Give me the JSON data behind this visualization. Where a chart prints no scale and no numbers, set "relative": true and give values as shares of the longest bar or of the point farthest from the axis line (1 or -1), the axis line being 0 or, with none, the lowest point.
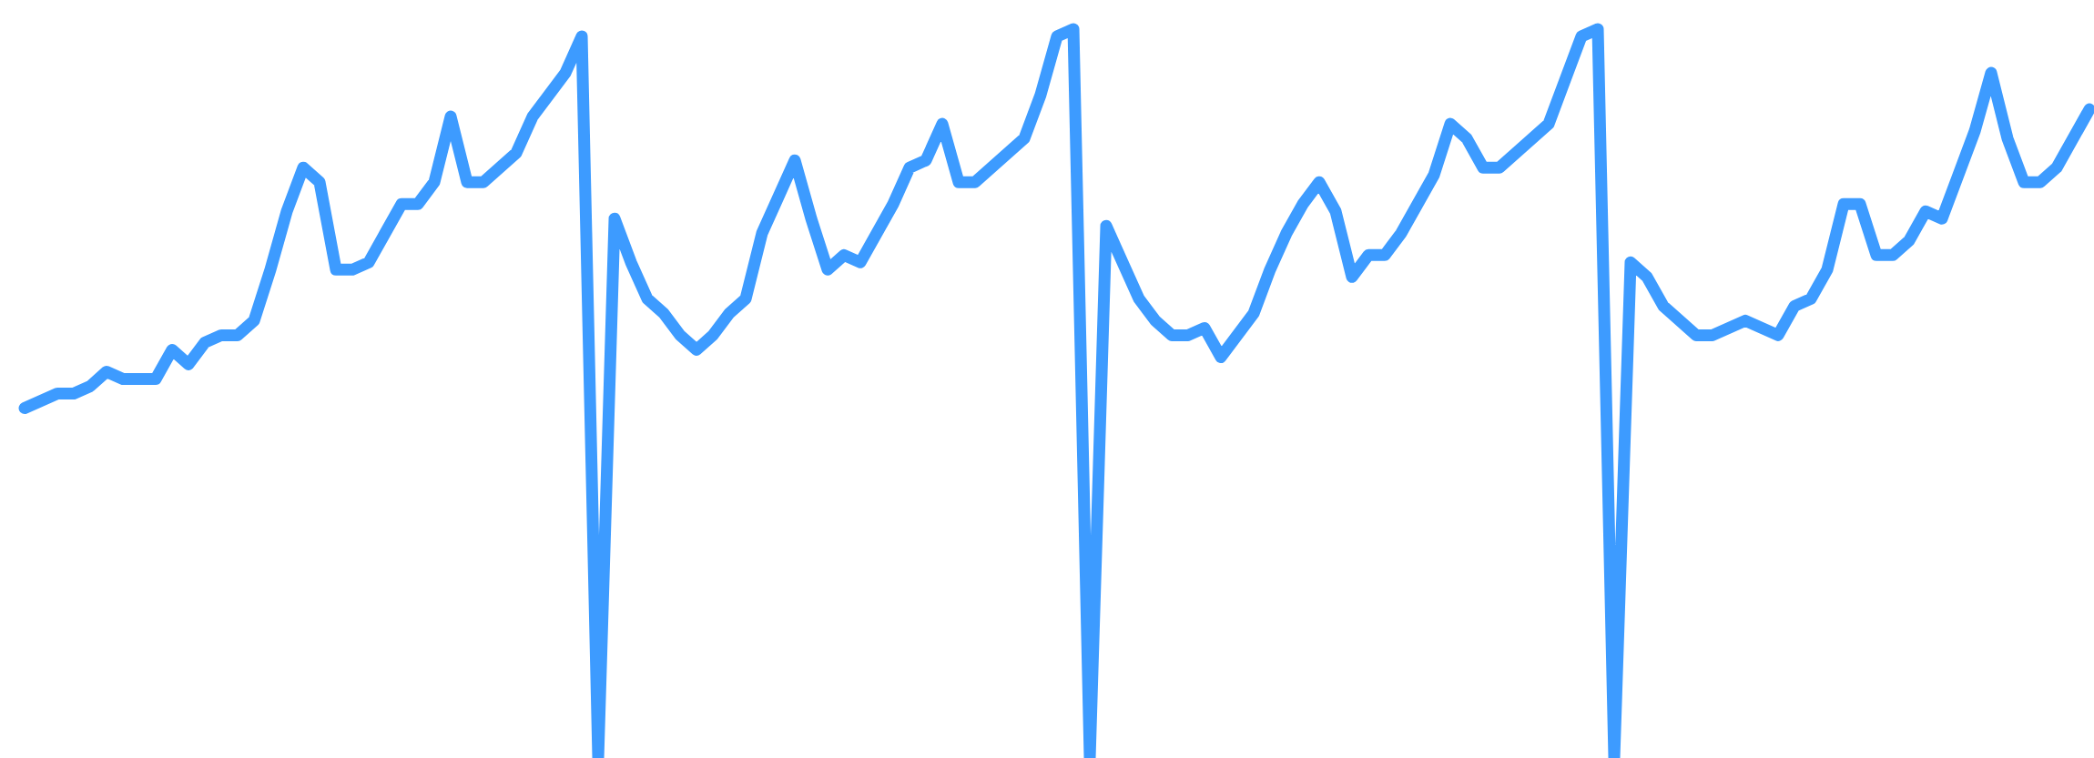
{
  "chart_data": {
    "type": "line",
    "relative": true,
    "marker": "none",
    "line_style": "solid",
    "categories": [
      null,
      null,
      null,
      null,
      null,
      null,
      null,
      null,
      null,
      null,
      null,
      null,
      null,
      null,
      null,
      null,
      null,
      null,
      null,
      null,
      null,
      null,
      null,
      null,
      null,
      null,
      null,
      null,
      null,
      null,
      null,
      null,
      null,
      null,
      null,
      null,
      null,
      null,
      null,
      null,
      null,
      null,
      null,
      null,
      null,
      null,
      null,
      null,
      null,
      null,
      null,
      null,
      null,
      null,
      null,
      null,
      null,
      null,
      null,
      null,
      null,
      null,
      null,
      null,
      null,
      null,
      null,
      null,
      null,
      null,
      null,
      null,
      null,
      null,
      null,
      null,
      null,
      null,
      null,
      null,
      null,
      null,
      null,
      null,
      null,
      null,
      null,
      null,
      null,
      null,
      null,
      null,
      null,
      null,
      null,
      null,
      null,
      null,
      null,
      null,
      null,
      null,
      null,
      null,
      null,
      null,
      null,
      null,
      null,
      null,
      null,
      null,
      null,
      null,
      null,
      null,
      null,
      null,
      null,
      null,
      null,
      null,
      null,
      null,
      null,
      null,
      null
    ],
    "series": [
      {
        "color": "#3d9bff",
        "values": [
          0.48,
          0.49,
          0.5,
          0.5,
          0.51,
          0.53,
          0.52,
          0.52,
          0.52,
          0.56,
          0.54,
          0.57,
          0.58,
          0.58,
          0.6,
          0.67,
          0.75,
          0.81,
          0.79,
          0.67,
          0.67,
          0.68,
          0.72,
          0.76,
          0.76,
          0.79,
          0.88,
          0.79,
          0.79,
          0.81,
          0.83,
          0.88,
          0.91,
          0.94,
          0.99,
          0,
          0.74,
          0.68,
          0.63,
          0.61,
          0.58,
          0.56,
          0.58,
          0.61,
          0.63,
          0.72,
          0.77,
          0.82,
          0.74,
          0.67,
          0.69,
          0.68,
          0.72,
          0.76,
          0.81,
          0.82,
          0.87,
          0.79,
          0.79,
          0.81,
          0.83,
          0.85,
          0.91,
          0.99,
          1,
          0,
          0.73,
          0.68,
          0.63,
          0.6,
          0.58,
          0.58,
          0.59,
          0.55,
          0.58,
          0.61,
          0.67,
          0.72,
          0.76,
          0.79,
          0.75,
          0.66,
          0.69,
          0.69,
          0.72,
          0.76,
          0.8,
          0.87,
          0.85,
          0.81,
          0.81,
          0.83,
          0.85,
          0.87,
          0.93,
          0.99,
          1,
          0,
          0.68,
          0.66,
          0.62,
          0.6,
          0.58,
          0.58,
          0.59,
          0.6,
          0.59,
          0.58,
          0.62,
          0.63,
          0.67,
          0.76,
          0.76,
          0.69,
          0.69,
          0.71,
          0.75,
          0.74,
          0.8,
          0.86,
          0.94,
          0.85,
          0.79,
          0.79,
          0.81,
          0.85,
          0.89
        ]
      }
    ]
  }
}
